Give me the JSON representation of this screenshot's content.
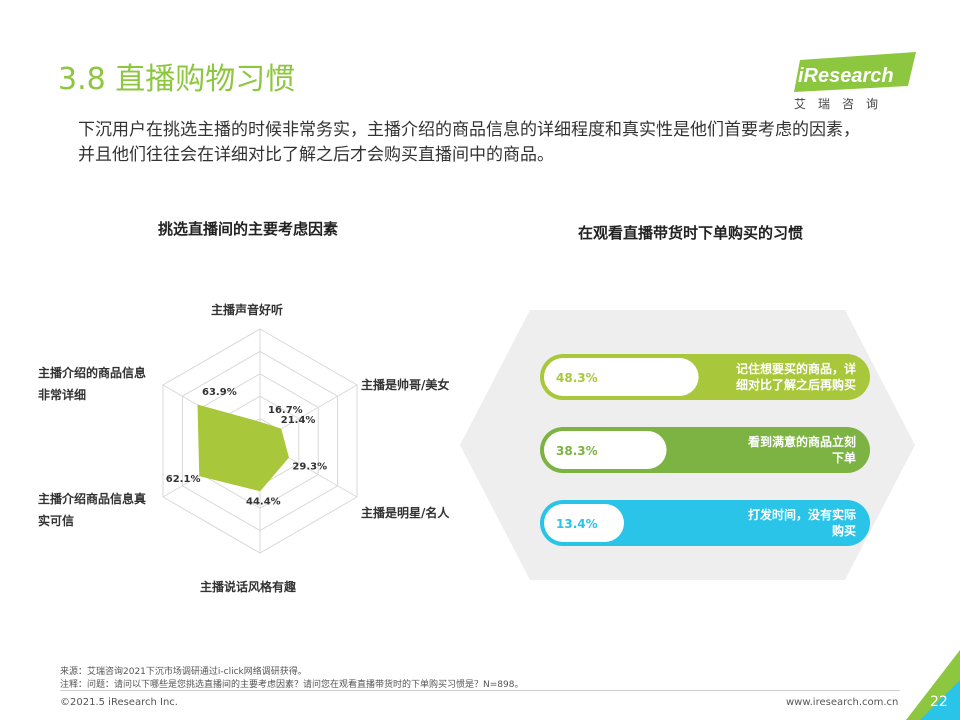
{
  "header": {
    "title": "3.8 直播购物习惯",
    "intro_line1": "下沉用户在挑选主播的时候非常务实，主播介绍的商品信息的详细程度和真实性是他们首要考虑的因素，",
    "intro_line2": "并且他们往往会在详细对比了解之后才会购买直播间中的商品。",
    "logo_text": "iResearch",
    "logo_tagline": "艾瑞咨询",
    "logo_color": "#8dc63f"
  },
  "chart_data": [
    {
      "type": "radar",
      "title": "挑选直播间的主要考虑因素",
      "categories": [
        "主播声音好听",
        "主播是帅哥/美女",
        "主播是明星/名人",
        "主播说话风格有趣",
        "主播介绍商品信息真实可信",
        "主播介绍的商品信息非常详细"
      ],
      "values": [
        16.7,
        21.4,
        29.3,
        44.4,
        62.1,
        63.9
      ],
      "value_labels": [
        "16.7%",
        "21.4%",
        "29.3%",
        "44.4%",
        "62.1%",
        "63.9%"
      ],
      "color": "#a8c73a",
      "grid": true
    },
    {
      "type": "bar",
      "title": "在观看直播带货时下单购买的习惯",
      "categories": [
        "记住想要买的商品，详细对比了解之后再购买",
        "看到满意的商品立刻下单",
        "打发时间，没有实际购买"
      ],
      "category_lines": [
        [
          "记住想要买的商品，详",
          "细对比了解之后再购买"
        ],
        [
          "看到满意的商品立刻",
          "下单"
        ],
        [
          "打发时间，没有实际",
          "购买"
        ]
      ],
      "values": [
        48.3,
        38.3,
        13.4
      ],
      "value_labels": [
        "48.3%",
        "38.3%",
        "13.4%"
      ],
      "colors": [
        "#a8c73a",
        "#7cb342",
        "#29c4e8"
      ]
    }
  ],
  "footer": {
    "source": "来源：艾瑞咨询2021下沉市场调研通过i-click网络调研获得。",
    "note": "注释：问题：请问以下哪些是您挑选直播间的主要考虑因素？请问您在观看直播带货时的下单购买习惯是？N=898。",
    "copyright": "©2021.5 iResearch Inc.",
    "website": "www.iresearch.com.cn",
    "page_number": "22"
  }
}
